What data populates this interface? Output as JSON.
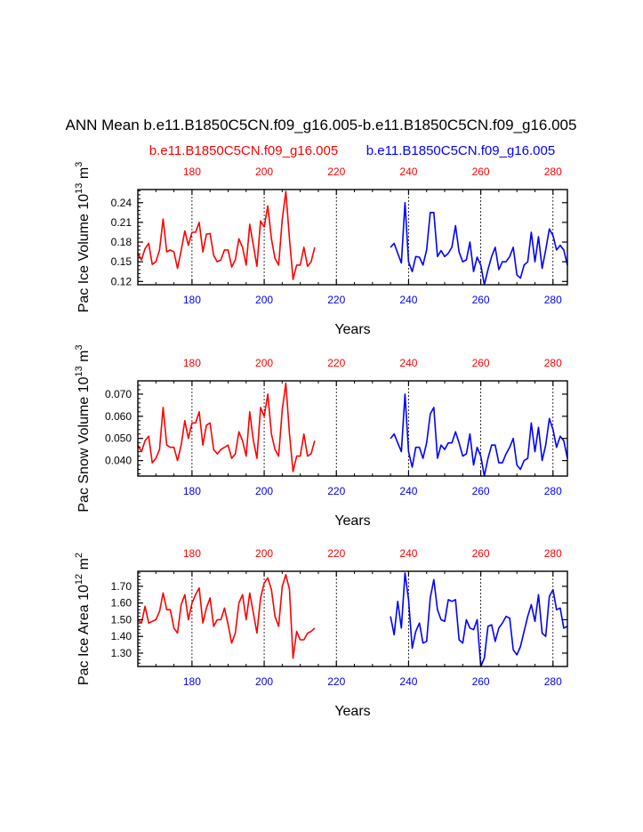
{
  "title": "ANN Mean b.e11.B1850C5CN.f09_g16.005-b.e11.B1850C5CN.f09_g16.005",
  "colors": {
    "case1": "#ff0000",
    "case2": "#0000ff",
    "axis": "#000000",
    "grid": "#000000"
  },
  "series_labels": {
    "case1": "b.e11.B1850C5CN.f09_g16.005",
    "case2": "b.e11.B1850C5CN.f09_g16.005"
  },
  "chart_data": [
    {
      "type": "line",
      "ylabel": "Pac Ice Volume 10",
      "ylabel_sup": "13",
      "ylabel_unit": "m",
      "ylabel_unit_sup": "3",
      "xlabel": "Years",
      "xlim": [
        165,
        284
      ],
      "ylim": [
        0.115,
        0.26
      ],
      "yticks": [
        0.12,
        0.15,
        0.18,
        0.21,
        0.24
      ],
      "ytick_labels": [
        "0.12",
        "0.15",
        "0.18",
        "0.21",
        "0.24"
      ],
      "xticks": [
        180,
        200,
        220,
        240,
        260,
        280
      ],
      "xtick_labels_top": [
        "180",
        "200",
        "220",
        "240",
        "260",
        "280"
      ],
      "xtick_labels_bottom": [
        "180",
        "200",
        "220",
        "240",
        "260",
        "280"
      ],
      "series": [
        {
          "name": "b.e11.B1850C5CN.f09_g16.005",
          "color": "#ff0000",
          "x_start": 165,
          "values": [
            0.163,
            0.153,
            0.17,
            0.178,
            0.146,
            0.15,
            0.168,
            0.215,
            0.165,
            0.168,
            0.165,
            0.14,
            0.167,
            0.197,
            0.175,
            0.195,
            0.195,
            0.21,
            0.165,
            0.192,
            0.193,
            0.16,
            0.15,
            0.153,
            0.168,
            0.168,
            0.142,
            0.153,
            0.185,
            0.172,
            0.145,
            0.207,
            0.175,
            0.143,
            0.212,
            0.203,
            0.235,
            0.185,
            0.155,
            0.145,
            0.215,
            0.257,
            0.185,
            0.123,
            0.145,
            0.145,
            0.172,
            0.143,
            0.15,
            0.172
          ]
        },
        {
          "name": "b.e11.B1850C5CN.f09_g16.005",
          "color": "#0000ff",
          "x_start": 235,
          "values": [
            0.172,
            0.178,
            0.163,
            0.148,
            0.24,
            0.15,
            0.135,
            0.158,
            0.157,
            0.145,
            0.168,
            0.225,
            0.225,
            0.158,
            0.167,
            0.158,
            0.163,
            0.172,
            0.205,
            0.165,
            0.15,
            0.153,
            0.18,
            0.135,
            0.157,
            0.145,
            0.115,
            0.138,
            0.158,
            0.172,
            0.138,
            0.15,
            0.15,
            0.158,
            0.172,
            0.13,
            0.125,
            0.145,
            0.15,
            0.195,
            0.15,
            0.188,
            0.14,
            0.168,
            0.2,
            0.19,
            0.168,
            0.175,
            0.168,
            0.145
          ]
        }
      ]
    },
    {
      "type": "line",
      "ylabel": "Pac Snow Volume 10",
      "ylabel_sup": "13",
      "ylabel_unit": "m",
      "ylabel_unit_sup": "3",
      "xlabel": "Years",
      "xlim": [
        165,
        284
      ],
      "ylim": [
        0.033,
        0.076
      ],
      "yticks": [
        0.04,
        0.05,
        0.06,
        0.07
      ],
      "ytick_labels": [
        "0.040",
        "0.050",
        "0.060",
        "0.070"
      ],
      "xticks": [
        180,
        200,
        220,
        240,
        260,
        280
      ],
      "xtick_labels_top": [
        "180",
        "200",
        "220",
        "240",
        "260",
        "280"
      ],
      "xtick_labels_bottom": [
        "180",
        "200",
        "220",
        "240",
        "260",
        "280"
      ],
      "series": [
        {
          "name": "b.e11.B1850C5CN.f09_g16.005",
          "color": "#ff0000",
          "x_start": 165,
          "values": [
            0.047,
            0.044,
            0.049,
            0.051,
            0.039,
            0.041,
            0.045,
            0.064,
            0.047,
            0.046,
            0.046,
            0.04,
            0.047,
            0.058,
            0.05,
            0.057,
            0.057,
            0.062,
            0.047,
            0.056,
            0.057,
            0.045,
            0.043,
            0.045,
            0.046,
            0.047,
            0.041,
            0.043,
            0.053,
            0.049,
            0.042,
            0.062,
            0.049,
            0.041,
            0.064,
            0.06,
            0.07,
            0.052,
            0.045,
            0.042,
            0.063,
            0.075,
            0.052,
            0.035,
            0.042,
            0.042,
            0.052,
            0.042,
            0.043,
            0.049
          ]
        },
        {
          "name": "b.e11.B1850C5CN.f09_g16.005",
          "color": "#0000ff",
          "x_start": 235,
          "values": [
            0.05,
            0.052,
            0.048,
            0.044,
            0.07,
            0.044,
            0.037,
            0.046,
            0.046,
            0.041,
            0.048,
            0.061,
            0.064,
            0.041,
            0.047,
            0.045,
            0.048,
            0.048,
            0.053,
            0.048,
            0.042,
            0.043,
            0.052,
            0.038,
            0.046,
            0.042,
            0.033,
            0.041,
            0.047,
            0.047,
            0.039,
            0.039,
            0.043,
            0.046,
            0.05,
            0.038,
            0.036,
            0.04,
            0.041,
            0.057,
            0.044,
            0.055,
            0.04,
            0.047,
            0.059,
            0.054,
            0.046,
            0.051,
            0.049,
            0.041
          ]
        }
      ]
    },
    {
      "type": "line",
      "ylabel": "Pac Ice Area 10",
      "ylabel_sup": "12",
      "ylabel_unit": "m",
      "ylabel_unit_sup": "2",
      "xlabel": "Years",
      "xlim": [
        165,
        284
      ],
      "ylim": [
        1.22,
        1.79
      ],
      "yticks": [
        1.3,
        1.4,
        1.5,
        1.6,
        1.7
      ],
      "ytick_labels": [
        "1.30",
        "1.40",
        "1.50",
        "1.60",
        "1.70"
      ],
      "xticks": [
        180,
        200,
        220,
        240,
        260,
        280
      ],
      "xtick_labels_top": [
        "180",
        "200",
        "220",
        "240",
        "260",
        "280"
      ],
      "xtick_labels_bottom": [
        "180",
        "200",
        "220",
        "240",
        "260",
        "280"
      ],
      "series": [
        {
          "name": "b.e11.B1850C5CN.f09_g16.005",
          "color": "#ff0000",
          "x_start": 165,
          "values": [
            1.5,
            1.48,
            1.58,
            1.48,
            1.49,
            1.5,
            1.55,
            1.66,
            1.56,
            1.56,
            1.45,
            1.42,
            1.59,
            1.65,
            1.5,
            1.6,
            1.65,
            1.69,
            1.48,
            1.57,
            1.63,
            1.46,
            1.5,
            1.5,
            1.57,
            1.47,
            1.36,
            1.42,
            1.6,
            1.65,
            1.5,
            1.66,
            1.54,
            1.42,
            1.63,
            1.72,
            1.75,
            1.68,
            1.52,
            1.46,
            1.7,
            1.77,
            1.68,
            1.27,
            1.43,
            1.38,
            1.38,
            1.42,
            1.43,
            1.45
          ]
        },
        {
          "name": "b.e11.B1850C5CN.f09_g16.005",
          "color": "#0000ff",
          "x_start": 235,
          "values": [
            1.52,
            1.41,
            1.61,
            1.45,
            1.78,
            1.62,
            1.33,
            1.43,
            1.48,
            1.36,
            1.37,
            1.63,
            1.74,
            1.56,
            1.5,
            1.49,
            1.62,
            1.61,
            1.62,
            1.38,
            1.36,
            1.5,
            1.45,
            1.44,
            1.5,
            1.22,
            1.27,
            1.46,
            1.47,
            1.37,
            1.45,
            1.48,
            1.52,
            1.51,
            1.32,
            1.29,
            1.34,
            1.43,
            1.52,
            1.59,
            1.49,
            1.65,
            1.42,
            1.4,
            1.64,
            1.68,
            1.56,
            1.57,
            1.45,
            1.46
          ]
        }
      ]
    }
  ]
}
